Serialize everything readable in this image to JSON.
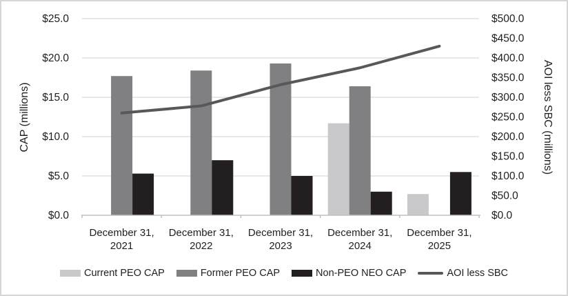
{
  "chart_data": {
    "type": "combo_bar_line",
    "categories": [
      {
        "line1": "December 31,",
        "line2": "2021"
      },
      {
        "line1": "December 31,",
        "line2": "2022"
      },
      {
        "line1": "December 31,",
        "line2": "2023"
      },
      {
        "line1": "December 31,",
        "line2": "2024"
      },
      {
        "line1": "December 31,",
        "line2": "2025"
      }
    ],
    "series": [
      {
        "name": "Current PEO CAP",
        "type": "bar",
        "axis": "left",
        "color": "#c9c9cb",
        "values": [
          null,
          null,
          null,
          11.7,
          2.7
        ]
      },
      {
        "name": "Former PEO CAP",
        "type": "bar",
        "axis": "left",
        "color": "#808083",
        "values": [
          17.7,
          18.4,
          19.3,
          16.4,
          null
        ]
      },
      {
        "name": "Non-PEO NEO CAP",
        "type": "bar",
        "axis": "left",
        "color": "#231f20",
        "values": [
          5.3,
          7.0,
          5.0,
          3.0,
          5.5
        ]
      },
      {
        "name": "AOI less SBC",
        "type": "line",
        "axis": "right",
        "color": "#58585a",
        "values": [
          260,
          278,
          332,
          375,
          430
        ]
      }
    ],
    "axes": {
      "left": {
        "title": "CAP (millions)",
        "min": 0,
        "max": 25,
        "step": 5,
        "tick_labels": [
          "$0.0",
          "$5.0",
          "$10.0",
          "$15.0",
          "$20.0",
          "$25.0"
        ]
      },
      "right": {
        "title": "AOI less SBC (millions)",
        "min": 0,
        "max": 500,
        "step": 50,
        "tick_labels": [
          "$0.0",
          "$50.0",
          "$100.0",
          "$150.0",
          "$200.0",
          "$250.0",
          "$300.0",
          "$350.0",
          "$400.0",
          "$450.0",
          "$500.0"
        ]
      }
    },
    "grid": {
      "show": true,
      "color": "#d9d9d9"
    },
    "axis_line_color": "#bfbfbf",
    "text_color": "#1f1f1f",
    "legend_position": "bottom"
  }
}
